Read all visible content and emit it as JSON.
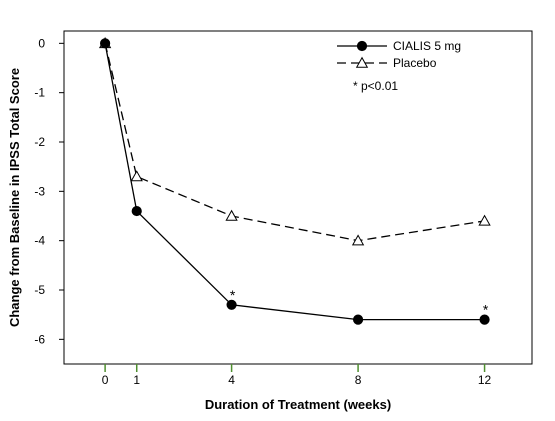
{
  "chart_data": {
    "type": "line",
    "title": "",
    "xlabel": "Duration of Treatment (weeks)",
    "ylabel": "Change from Baseline in IPSS Total Score",
    "x": [
      0,
      1,
      4,
      8,
      12
    ],
    "x_ticks": [
      "0",
      "1",
      "4",
      "8",
      "12"
    ],
    "xlim": [
      -1.3,
      13.5
    ],
    "y_ticks": [
      "0",
      "-1",
      "-2",
      "-3",
      "-4",
      "-5",
      "-6"
    ],
    "y_tick_values": [
      0,
      -1,
      -2,
      -3,
      -4,
      -5,
      -6
    ],
    "ylim": [
      -6.5,
      0.25
    ],
    "grid": false,
    "legend_position": "top-right",
    "series": [
      {
        "name": "CIALIS 5 mg",
        "values": [
          0,
          -3.4,
          -5.3,
          -5.6,
          -5.6
        ],
        "line": "solid",
        "marker": "filled-circle",
        "color": "#000000"
      },
      {
        "name": "Placebo",
        "values": [
          0,
          -2.7,
          -3.5,
          -4.0,
          -3.6
        ],
        "line": "dashed",
        "marker": "open-triangle",
        "color": "#000000"
      }
    ],
    "legend_note": "* p<0.01",
    "annotations": [
      {
        "text": "*",
        "x": 4,
        "y": -5.3
      },
      {
        "text": "*",
        "x": 12,
        "y": -5.6
      }
    ],
    "tick_mark_color": "#4f8f2f"
  }
}
